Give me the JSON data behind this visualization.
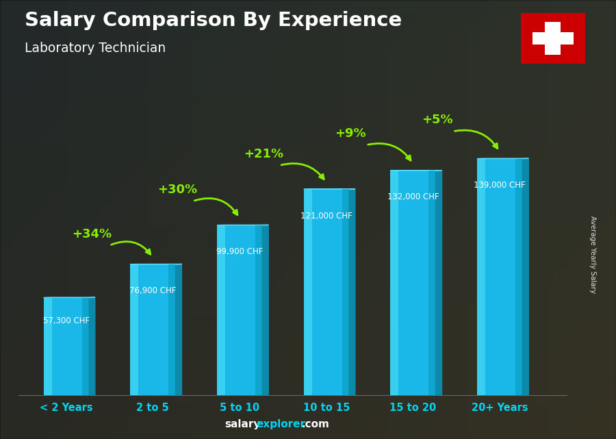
{
  "title": "Salary Comparison By Experience",
  "subtitle": "Laboratory Technician",
  "categories": [
    "< 2 Years",
    "2 to 5",
    "5 to 10",
    "10 to 15",
    "15 to 20",
    "20+ Years"
  ],
  "values": [
    57300,
    76900,
    99900,
    121000,
    132000,
    139000
  ],
  "value_labels": [
    "57,300 CHF",
    "76,900 CHF",
    "99,900 CHF",
    "121,000 CHF",
    "132,000 CHF",
    "139,000 CHF"
  ],
  "pct_changes": [
    "+34%",
    "+30%",
    "+21%",
    "+9%",
    "+5%"
  ],
  "bar_face_color": "#1ab8e8",
  "bar_side_color": "#0d8aaa",
  "bar_top_color": "#55d8f5",
  "bar_dark_bottom": "#0a6e8a",
  "background_color": "#3a3a3a",
  "text_color_white": "#ffffff",
  "text_color_cyan": "#00d4f5",
  "text_color_green": "#88ee00",
  "ylabel": "Average Yearly Salary",
  "footer_salary": "salary",
  "footer_explorer": "explorer",
  "footer_dot_com": ".com",
  "swiss_flag_bg": "#cc0000",
  "swiss_flag_cross": "#ffffff",
  "ylim_max": 160000
}
